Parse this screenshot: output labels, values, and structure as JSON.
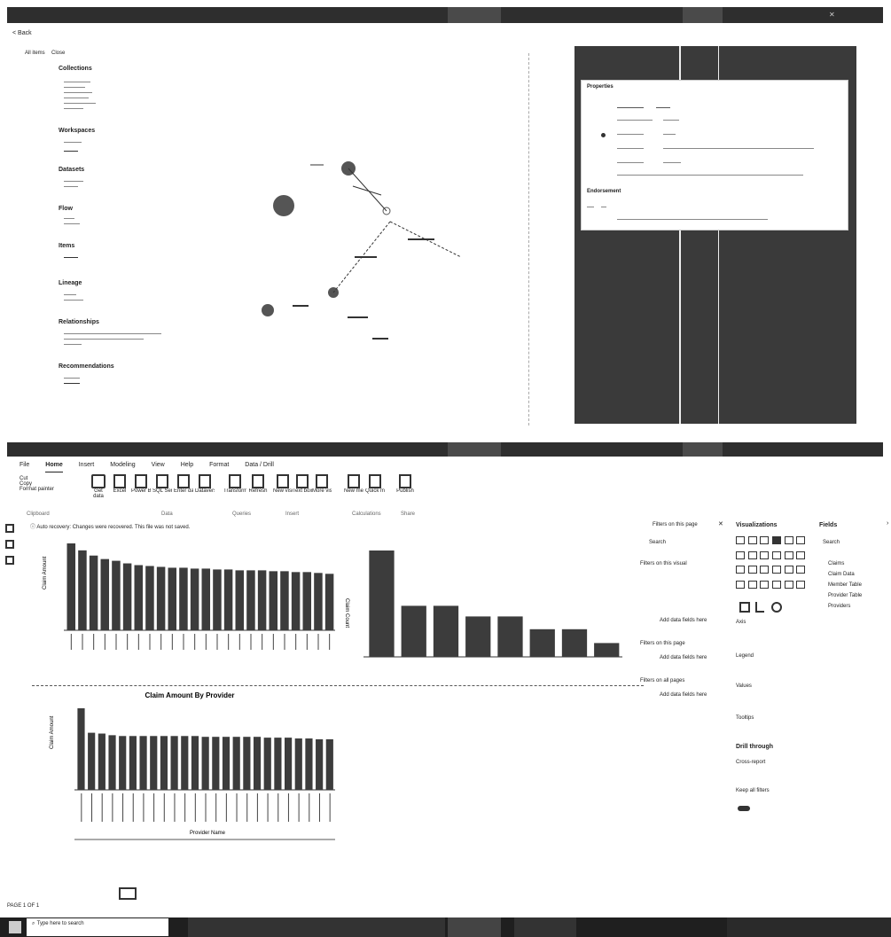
{
  "top": {
    "back_label": "< Back",
    "menu": [
      "All items",
      "Close"
    ],
    "left_panel_sections": [
      {
        "title": "Collections"
      },
      {
        "title": "Workspaces"
      },
      {
        "title": "Datasets"
      },
      {
        "title": "Flow"
      },
      {
        "title": "Items"
      },
      {
        "title": "Lineage"
      },
      {
        "title": "Relationships"
      },
      {
        "title": "Recommendations"
      }
    ],
    "details_header": "Properties",
    "details_subheader": "Endorsement"
  },
  "ribbon": {
    "tabs": [
      "File",
      "Home",
      "Insert",
      "Modeling",
      "View",
      "Help",
      "Format",
      "Data / Drill"
    ],
    "clipboard": [
      "Cut",
      "Copy",
      "Format painter"
    ],
    "groups": [
      "Clipboard",
      "Data",
      "Queries",
      "Insert",
      "Calculations",
      "Share"
    ],
    "buttons": [
      "Get data",
      "Excel",
      "Power BI datasets",
      "SQL Server",
      "Enter data",
      "Dataverse",
      "Transform data",
      "Refresh",
      "New visual",
      "Text box",
      "More visuals",
      "New measure",
      "Quick measure",
      "Publish"
    ]
  },
  "notice": "Auto recovery: Changes were recovered. This file was not saved.",
  "charts": {
    "top_left": {
      "ylabel": "Claim Amount"
    },
    "top_right": {
      "ylabel": "Claim Count"
    },
    "bottom_left": {
      "title": "Claim Amount By Provider",
      "ylabel": "Claim Amount",
      "xlabel": "Provider Name"
    }
  },
  "filters": {
    "header": "Filters on this page",
    "search": "Search",
    "items": [
      "Filters on this visual",
      "Add data fields here",
      "Filters on this page",
      "Add data fields here",
      "Filters on all pages",
      "Add data fields here"
    ]
  },
  "visualizations": {
    "title": "Visualizations",
    "sections": [
      "Axis",
      "Legend",
      "Values",
      "Tooltips",
      "Drill through",
      "Cross-report",
      "Keep all filters"
    ],
    "drill_through": "Drill through"
  },
  "fields": {
    "title": "Fields",
    "search": "Search",
    "items": [
      "Claims",
      "Claim Data",
      "Member Table",
      "Provider Table",
      "Providers"
    ]
  },
  "taskbar": {
    "search_placeholder": "Type here to search",
    "start_icon": "windows-logo-icon"
  },
  "footer_label": "PAGE 1 OF 1",
  "chart_data": [
    {
      "type": "bar",
      "values": [
        100,
        92,
        86,
        82,
        80,
        77,
        75,
        74,
        73,
        72,
        72,
        71,
        71,
        70,
        70,
        69,
        69,
        69,
        68,
        68,
        67,
        67,
        66,
        65
      ]
    },
    {
      "type": "bar",
      "values": [
        100,
        48,
        48,
        38,
        38,
        26,
        26,
        13
      ]
    },
    {
      "type": "bar",
      "title": "Claim Amount By Provider",
      "xlabel": "Provider Name",
      "ylabel": "Claim Amount",
      "values": [
        100,
        70,
        69,
        67,
        66,
        66,
        66,
        66,
        66,
        66,
        66,
        66,
        65,
        65,
        65,
        65,
        65,
        65,
        64,
        64,
        64,
        63,
        63,
        62,
        62
      ]
    }
  ]
}
